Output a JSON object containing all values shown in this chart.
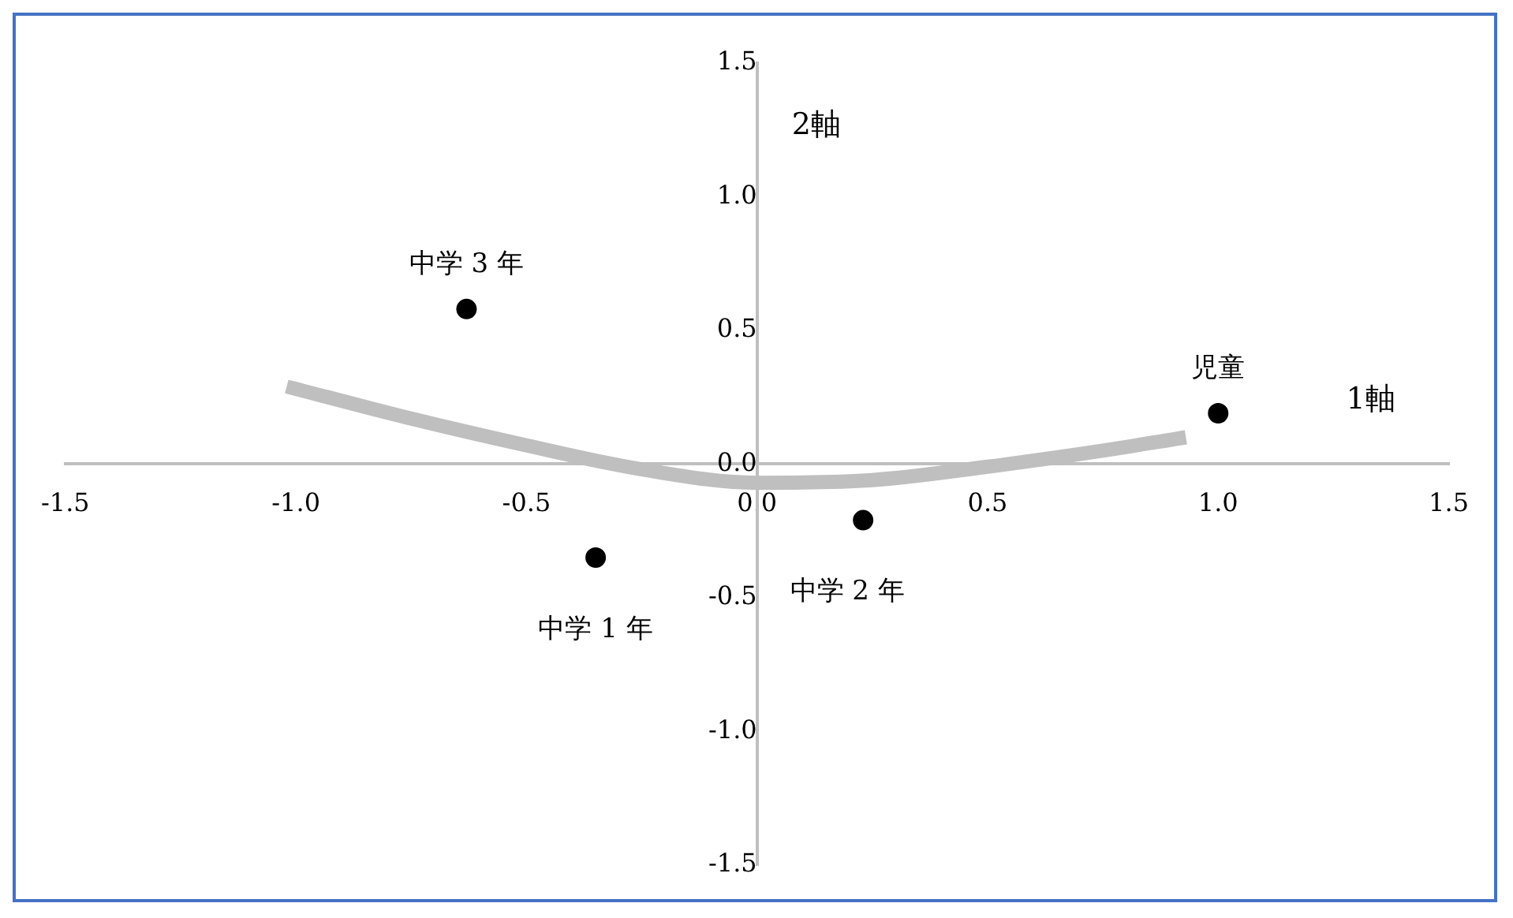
{
  "chart_data": {
    "type": "scatter",
    "xlabel": "1軸",
    "ylabel": "2軸",
    "xlim": [
      -1.5,
      1.5
    ],
    "ylim": [
      -1.5,
      1.5
    ],
    "xticks": [
      {
        "value": -1.5,
        "label": "-1.5"
      },
      {
        "value": -1,
        "label": "-1.0"
      },
      {
        "value": -0.5,
        "label": "-0.5"
      },
      {
        "value": 0,
        "label": "0.0"
      },
      {
        "value": 0.5,
        "label": "0.5"
      },
      {
        "value": 1,
        "label": "1.0"
      },
      {
        "value": 1.5,
        "label": "1.5"
      }
    ],
    "yticks": [
      {
        "value": -1.5,
        "label": "-1.5"
      },
      {
        "value": -1,
        "label": "-1.0"
      },
      {
        "value": -0.5,
        "label": "-0.5"
      },
      {
        "value": 0,
        "label": "0.0"
      },
      {
        "value": 0.5,
        "label": "0.5"
      },
      {
        "value": 1,
        "label": "1.0"
      },
      {
        "value": 1.5,
        "label": "1.5"
      }
    ],
    "grid": false,
    "legend": false,
    "series": [
      {
        "type": "scatter",
        "marker": "circle",
        "color": "#000000",
        "x": [
          -0.63,
          1.0,
          -0.35,
          0.23
        ],
        "values": [
          0.58,
          0.19,
          -0.35,
          -0.21
        ]
      },
      {
        "type": "line",
        "marker": "none",
        "color": "#bfbfbf",
        "x": [
          -1.02,
          -0.75,
          -0.5,
          -0.25,
          0,
          0.25,
          0.5,
          0.75,
          0.93
        ],
        "values": [
          0.29,
          0.17,
          0.07,
          -0.02,
          -0.07,
          -0.06,
          -0.01,
          0.05,
          0.1
        ]
      }
    ],
    "annotations": [
      {
        "text": "中学 3 年",
        "x": -0.63,
        "y": 0.58
      },
      {
        "text": "児童",
        "x": 1.0,
        "y": 0.19
      },
      {
        "text": "中学 1 年",
        "x": -0.35,
        "y": -0.35
      },
      {
        "text": "中学 2 年",
        "x": 0.23,
        "y": -0.21
      }
    ]
  }
}
